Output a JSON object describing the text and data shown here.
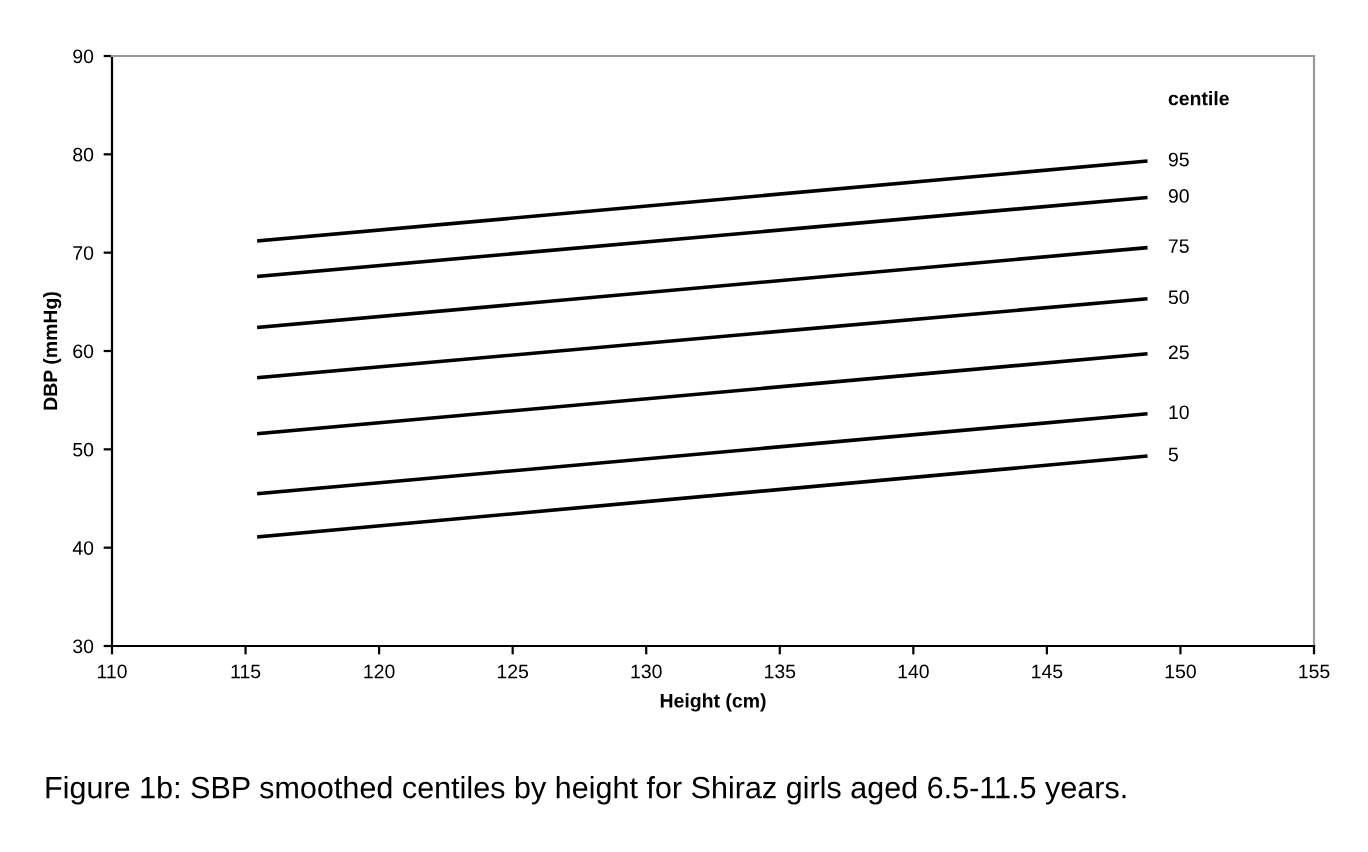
{
  "chart_data": {
    "type": "line",
    "xlabel": "Height (cm)",
    "ylabel": "DBP (mmHg)",
    "legend_title": "centile",
    "xlim": [
      110,
      155
    ],
    "xticks": [
      110,
      115,
      120,
      125,
      130,
      135,
      140,
      145,
      150,
      155
    ],
    "ylim": [
      30,
      90
    ],
    "yticks": [
      30,
      40,
      50,
      60,
      70,
      80,
      90
    ],
    "grid": false,
    "legend": false,
    "marker": "none",
    "line_style": "solid",
    "x": [
      115.5,
      148.7
    ],
    "series": [
      {
        "name": "95",
        "color": "#000000",
        "values": [
          71.2,
          79.3
        ]
      },
      {
        "name": "90",
        "color": "#000000",
        "values": [
          67.6,
          75.6
        ]
      },
      {
        "name": "75",
        "color": "#000000",
        "values": [
          62.4,
          70.5
        ]
      },
      {
        "name": "50",
        "color": "#000000",
        "values": [
          57.3,
          65.3
        ]
      },
      {
        "name": "25",
        "color": "#000000",
        "values": [
          51.6,
          59.7
        ]
      },
      {
        "name": "10",
        "color": "#000000",
        "values": [
          45.5,
          53.6
        ]
      },
      {
        "name": "5",
        "color": "#000000",
        "values": [
          41.1,
          49.3
        ]
      }
    ],
    "annotations": [
      "Figure 1b: SBP smoothed centiles by height for Shiraz girls aged 6.5-11.5 years."
    ]
  }
}
